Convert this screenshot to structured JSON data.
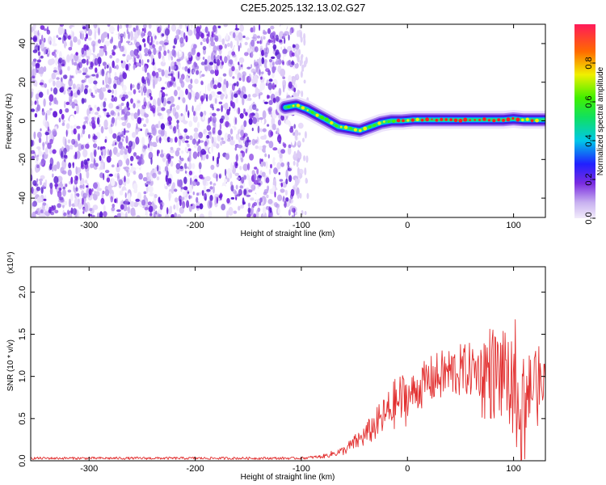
{
  "title": "C2E5.2025.132.13.02.G27",
  "colors": {
    "noise": "#7a2be0",
    "signal_line": "#e23030",
    "axis": "#000000"
  },
  "chart_data": [
    {
      "type": "heatmap",
      "name": "spectrogram",
      "xlabel": "Height of straight line (km)",
      "ylabel": "Frequency (Hz)",
      "xlim": [
        -355,
        130
      ],
      "ylim": [
        -50,
        50
      ],
      "xticks": [
        -300,
        -200,
        -100,
        0,
        100
      ],
      "yticks": [
        -40,
        -20,
        0,
        20,
        40
      ],
      "noise_region_x": [
        -355,
        -100
      ],
      "ridge": {
        "x": [
          -115,
          -105,
          -95,
          -85,
          -75,
          -65,
          -55,
          -45,
          -35,
          -25,
          -15,
          -5,
          5,
          15,
          30,
          45,
          60,
          75,
          90,
          100,
          110,
          120,
          130
        ],
        "y": [
          7,
          8,
          6,
          3,
          0,
          -3,
          -4,
          -5,
          -3,
          -1,
          0,
          0,
          0.5,
          0.5,
          0.5,
          0.5,
          0.5,
          0.5,
          0.5,
          1,
          0.5,
          0.5,
          0.5
        ]
      },
      "colorbar": {
        "label": "Normalized spectral amplitude",
        "range": [
          0.0,
          1.0
        ],
        "ticks": [
          0.0,
          0.2,
          0.4,
          0.6,
          0.8
        ]
      }
    },
    {
      "type": "line",
      "name": "snr",
      "xlabel": "Height of straight line (km)",
      "ylabel": "SNR (10 * v/v)",
      "scale_label": "(x10⁴)",
      "xlim": [
        -355,
        130
      ],
      "ylim": [
        0,
        2.3
      ],
      "xticks": [
        -300,
        -200,
        -100,
        0,
        100
      ],
      "yticks": [
        0.0,
        0.5,
        1.0,
        1.5,
        2.0
      ],
      "envelope": {
        "x": [
          -355,
          -120,
          -100,
          -80,
          -60,
          -40,
          -20,
          -10,
          0,
          10,
          20,
          30,
          40,
          60,
          80,
          90,
          100,
          105,
          110,
          115,
          120,
          130
        ],
        "y": [
          0.03,
          0.03,
          0.03,
          0.05,
          0.12,
          0.3,
          0.55,
          0.7,
          0.75,
          0.85,
          0.95,
          1.0,
          1.05,
          1.08,
          1.05,
          1.0,
          0.9,
          0.8,
          0.8,
          0.85,
          0.9,
          0.95
        ]
      }
    }
  ]
}
